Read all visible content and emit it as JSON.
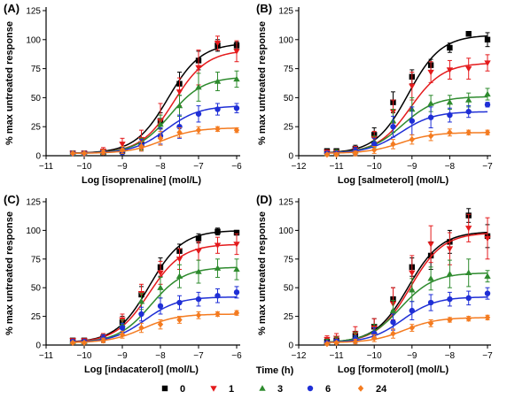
{
  "legend": {
    "title": "Time (h)",
    "entries": [
      {
        "label": "0",
        "color": "#000000",
        "marker": "square"
      },
      {
        "label": "1",
        "color": "#e41a1c",
        "marker": "triangle-down"
      },
      {
        "label": "3",
        "color": "#2e8b2e",
        "marker": "triangle-up"
      },
      {
        "label": "6",
        "color": "#1f2fd6",
        "marker": "circle"
      },
      {
        "label": "24",
        "color": "#f47b20",
        "marker": "diamond"
      }
    ]
  },
  "chart_data": [
    {
      "type": "line",
      "panel": "(A)",
      "xlabel": "Log [isoprenaline] (mol/L)",
      "ylabel": "% max untreated response",
      "xlim": [
        -11,
        -6
      ],
      "ylim": [
        0,
        125
      ],
      "xticks": [
        -11,
        -10,
        -9,
        -8,
        -7,
        -6
      ],
      "yticks": [
        0,
        25,
        50,
        75,
        100,
        125
      ],
      "x": [
        -10.3,
        -10,
        -9.5,
        -9,
        -8.5,
        -8,
        -7.5,
        -7,
        -6.5,
        -6
      ],
      "series": [
        {
          "name": "0",
          "top": 97,
          "ec50": -7.8,
          "values": [
            2,
            2,
            3,
            4,
            10,
            30,
            62,
            82,
            95,
            95
          ],
          "errors": [
            1,
            1,
            2,
            3,
            4,
            7,
            10,
            8,
            5,
            3
          ]
        },
        {
          "name": "1",
          "top": 91,
          "ec50": -7.65,
          "values": [
            2,
            2,
            4,
            10,
            14,
            30,
            55,
            76,
            97,
            90
          ],
          "errors": [
            1,
            2,
            3,
            5,
            8,
            15,
            12,
            15,
            6,
            9
          ]
        },
        {
          "name": "3",
          "top": 68,
          "ec50": -7.75,
          "values": [
            2,
            2,
            3,
            5,
            10,
            27,
            43,
            59,
            64,
            66
          ],
          "errors": [
            1,
            1,
            2,
            3,
            5,
            8,
            9,
            12,
            8,
            7
          ]
        },
        {
          "name": "6",
          "top": 43,
          "ec50": -7.85,
          "values": [
            2,
            2,
            3,
            4,
            9,
            17,
            25,
            36,
            40,
            41
          ],
          "errors": [
            1,
            1,
            2,
            3,
            5,
            7,
            10,
            7,
            5,
            4
          ]
        },
        {
          "name": "24",
          "top": 24,
          "ec50": -7.95,
          "values": [
            2,
            2,
            3,
            5,
            8,
            15,
            20,
            22,
            23,
            22
          ],
          "errors": [
            1,
            1,
            2,
            3,
            4,
            6,
            4,
            3,
            2,
            2
          ]
        }
      ]
    },
    {
      "type": "line",
      "panel": "(B)",
      "xlabel": "Log [salmeterol] (mol/L)",
      "ylabel": "% max untreated response",
      "xlim": [
        -12,
        -7
      ],
      "ylim": [
        0,
        125
      ],
      "xticks": [
        -12,
        -11,
        -10,
        -9,
        -8,
        -7
      ],
      "yticks": [
        0,
        25,
        50,
        75,
        100,
        125
      ],
      "x": [
        -11.25,
        -11,
        -10.5,
        -10,
        -9.5,
        -9,
        -8.5,
        -8,
        -7.5,
        -7
      ],
      "series": [
        {
          "name": "0",
          "top": 104,
          "ec50": -9.1,
          "values": [
            4,
            4,
            6,
            18,
            46,
            68,
            78,
            93,
            105,
            100
          ],
          "errors": [
            2,
            2,
            3,
            6,
            9,
            6,
            5,
            4,
            2,
            6
          ]
        },
        {
          "name": "1",
          "top": 80,
          "ec50": -9.05,
          "values": [
            3,
            3,
            5,
            15,
            38,
            60,
            72,
            74,
            75,
            80
          ],
          "errors": [
            2,
            2,
            3,
            6,
            10,
            12,
            9,
            8,
            9,
            7
          ]
        },
        {
          "name": "3",
          "top": 51,
          "ec50": -9.25,
          "values": [
            2,
            3,
            4,
            12,
            30,
            40,
            45,
            46,
            48,
            53
          ],
          "errors": [
            1,
            2,
            3,
            5,
            10,
            10,
            7,
            6,
            6,
            5
          ]
        },
        {
          "name": "6",
          "top": 38,
          "ec50": -9.3,
          "values": [
            2,
            2,
            4,
            10,
            25,
            30,
            33,
            35,
            38,
            44
          ],
          "errors": [
            1,
            1,
            3,
            5,
            9,
            12,
            9,
            6,
            5,
            2
          ]
        },
        {
          "name": "24",
          "top": 20,
          "ec50": -9.3,
          "values": [
            1,
            1,
            2,
            5,
            10,
            14,
            17,
            20,
            20,
            20
          ],
          "errors": [
            1,
            1,
            2,
            3,
            4,
            4,
            4,
            3,
            2,
            2
          ]
        }
      ]
    },
    {
      "type": "line",
      "panel": "(C)",
      "xlabel": "Log [indacaterol] (mol/L)",
      "ylabel": "% max untreated response",
      "xlim": [
        -11,
        -6
      ],
      "ylim": [
        0,
        125
      ],
      "xticks": [
        -11,
        -10,
        -9,
        -8,
        -7,
        -6
      ],
      "yticks": [
        0,
        25,
        50,
        75,
        100,
        125
      ],
      "x": [
        -10.3,
        -10,
        -9.5,
        -9,
        -8.5,
        -8,
        -7.5,
        -7,
        -6.5,
        -6
      ],
      "series": [
        {
          "name": "0",
          "top": 100,
          "ec50": -8.3,
          "values": [
            4,
            4,
            6,
            20,
            44,
            68,
            82,
            93,
            99,
            98
          ],
          "errors": [
            1,
            1,
            3,
            5,
            7,
            8,
            6,
            4,
            3,
            2
          ]
        },
        {
          "name": "1",
          "top": 88,
          "ec50": -8.3,
          "values": [
            4,
            4,
            7,
            22,
            45,
            63,
            75,
            82,
            87,
            88
          ],
          "errors": [
            1,
            1,
            3,
            5,
            8,
            10,
            9,
            8,
            7,
            9
          ]
        },
        {
          "name": "3",
          "top": 68,
          "ec50": -8.25,
          "values": [
            3,
            3,
            6,
            18,
            38,
            50,
            60,
            64,
            67,
            66
          ],
          "errors": [
            1,
            1,
            3,
            4,
            7,
            9,
            10,
            10,
            8,
            9
          ]
        },
        {
          "name": "6",
          "top": 42,
          "ec50": -8.4,
          "values": [
            3,
            3,
            6,
            15,
            27,
            34,
            37,
            40,
            43,
            46
          ],
          "errors": [
            1,
            1,
            3,
            4,
            6,
            7,
            6,
            6,
            6,
            5
          ]
        },
        {
          "name": "24",
          "top": 27,
          "ec50": -8.45,
          "values": [
            2,
            2,
            4,
            9,
            15,
            18,
            22,
            26,
            27,
            28
          ],
          "errors": [
            1,
            1,
            2,
            3,
            4,
            4,
            3,
            3,
            2,
            2
          ]
        }
      ]
    },
    {
      "type": "line",
      "panel": "(D)",
      "xlabel": "Log [formoterol] (mol/L)",
      "ylabel": "% max untreated response",
      "xlim": [
        -12,
        -7
      ],
      "ylim": [
        0,
        125
      ],
      "xticks": [
        -12,
        -11,
        -10,
        -9,
        -8,
        -7
      ],
      "yticks": [
        0,
        25,
        50,
        75,
        100,
        125
      ],
      "x": [
        -11.25,
        -11,
        -10.5,
        -10,
        -9.5,
        -9,
        -8.5,
        -8,
        -7.5,
        -7
      ],
      "series": [
        {
          "name": "0",
          "top": 99,
          "ec50": -9.1,
          "values": [
            3,
            4,
            8,
            16,
            40,
            68,
            78,
            90,
            113,
            95
          ],
          "errors": [
            2,
            3,
            4,
            7,
            10,
            8,
            12,
            10,
            6,
            10
          ]
        },
        {
          "name": "1",
          "top": 98,
          "ec50": -9.05,
          "values": [
            5,
            6,
            10,
            15,
            36,
            63,
            88,
            84,
            102,
            93
          ],
          "errors": [
            3,
            4,
            6,
            8,
            14,
            15,
            16,
            14,
            12,
            18
          ]
        },
        {
          "name": "3",
          "top": 63,
          "ec50": -9.3,
          "values": [
            3,
            4,
            7,
            12,
            30,
            48,
            58,
            62,
            63,
            60
          ],
          "errors": [
            2,
            3,
            4,
            6,
            9,
            10,
            10,
            12,
            12,
            5
          ]
        },
        {
          "name": "6",
          "top": 42,
          "ec50": -9.25,
          "values": [
            2,
            3,
            5,
            10,
            20,
            30,
            37,
            40,
            41,
            45
          ],
          "errors": [
            1,
            2,
            3,
            5,
            7,
            8,
            7,
            6,
            6,
            5
          ]
        },
        {
          "name": "24",
          "top": 24,
          "ec50": -9.2,
          "values": [
            1,
            2,
            3,
            6,
            10,
            15,
            19,
            22,
            23,
            24
          ],
          "errors": [
            1,
            1,
            2,
            3,
            4,
            3,
            3,
            2,
            2,
            2
          ]
        }
      ]
    }
  ]
}
